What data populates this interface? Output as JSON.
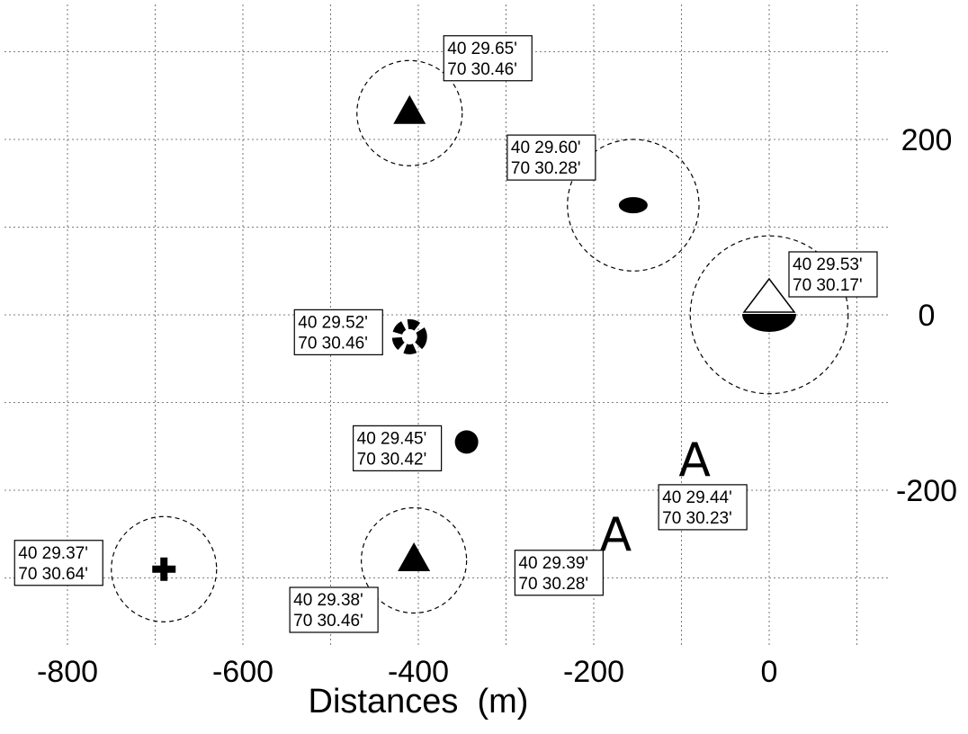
{
  "chart_data": {
    "type": "scatter",
    "title": "",
    "xlabel": "Distances  (m)",
    "ylabel": "",
    "xlim": [
      -880,
      130
    ],
    "ylim": [
      -290,
      340
    ],
    "x_ticks": [
      "-800",
      "-600",
      "-400",
      "-200",
      "0"
    ],
    "x_tick_values": [
      -800,
      -600,
      -400,
      -200,
      0
    ],
    "y_ticks": [
      "200",
      "0",
      "-200"
    ],
    "y_tick_values": [
      200,
      0,
      -200
    ],
    "grid": true,
    "grid_step": 100,
    "points": [
      {
        "symbol": "triangle",
        "x": -410,
        "y": 230,
        "radius": 60,
        "label": [
          "40 29.65'",
          "70 30.46'"
        ]
      },
      {
        "symbol": "ellipse",
        "x": -155,
        "y": 125,
        "radius": 75,
        "label": [
          "40 29.60'",
          "70 30.28'"
        ]
      },
      {
        "symbol": "sailboat",
        "x": 0,
        "y": 0,
        "radius": 90,
        "label": [
          "40 29.53'",
          "70 30.17'"
        ]
      },
      {
        "symbol": "lifebuoy",
        "x": -410,
        "y": -25,
        "label": [
          "40 29.52'",
          "70 30.46'"
        ]
      },
      {
        "symbol": "dot",
        "x": -345,
        "y": -145,
        "label": [
          "40 29.45'",
          "70 30.42'"
        ]
      },
      {
        "symbol": "letter-A",
        "x": -85,
        "y": -165,
        "label": [
          "40 29.44'",
          "70 30.23'"
        ]
      },
      {
        "symbol": "plus",
        "x": -690,
        "y": -290,
        "radius": 60,
        "label": [
          "40 29.37'",
          "70 30.64'"
        ]
      },
      {
        "symbol": "triangle",
        "x": -405,
        "y": -280,
        "radius": 60,
        "label": [
          "40 29.38'",
          "70 30.46'"
        ]
      },
      {
        "symbol": "letter-A",
        "x": -175,
        "y": -250,
        "label": [
          "40 29.39'",
          "70 30.28'"
        ]
      }
    ]
  }
}
